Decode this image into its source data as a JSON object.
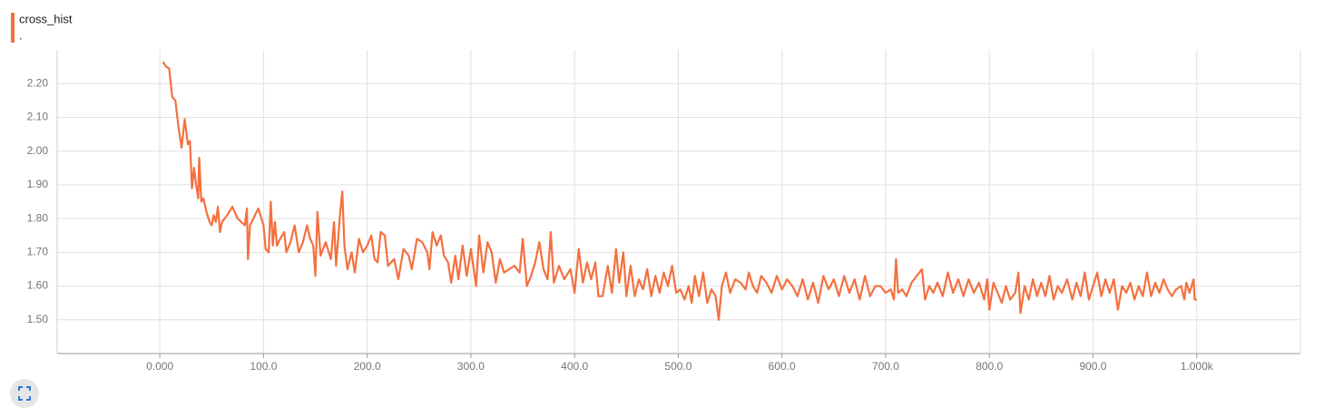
{
  "chart_data": {
    "type": "line",
    "subtitle": ".",
    "x": [
      3,
      6,
      9,
      12,
      15,
      18,
      21,
      24,
      27,
      29,
      31,
      33,
      35,
      37,
      38,
      40,
      42,
      45,
      48,
      50,
      52,
      54,
      56,
      58,
      60,
      65,
      70,
      75,
      82,
      84,
      85,
      87,
      95,
      100,
      102,
      105,
      107,
      109,
      111,
      113,
      116,
      120,
      122,
      126,
      130,
      134,
      138,
      142,
      145,
      148,
      150,
      152,
      155,
      160,
      165,
      168,
      170,
      174,
      176,
      178,
      181,
      185,
      188,
      192,
      196,
      200,
      204,
      207,
      210,
      213,
      217,
      220,
      226,
      230,
      235,
      240,
      243,
      248,
      253,
      258,
      260,
      263,
      267,
      271,
      274,
      278,
      281,
      285,
      288,
      292,
      296,
      300,
      305,
      308,
      312,
      316,
      320,
      324,
      328,
      332,
      337,
      342,
      347,
      350,
      354,
      358,
      362,
      366,
      370,
      374,
      377,
      380,
      385,
      390,
      396,
      400,
      404,
      408,
      412,
      416,
      420,
      423,
      427,
      432,
      436,
      440,
      443,
      447,
      450,
      454,
      458,
      462,
      466,
      470,
      474,
      478,
      482,
      486,
      490,
      494,
      498,
      502,
      506,
      510,
      513,
      516,
      520,
      524,
      528,
      532,
      536,
      539,
      542,
      546,
      550,
      555,
      560,
      565,
      568,
      572,
      576,
      580,
      585,
      590,
      595,
      600,
      605,
      610,
      615,
      620,
      625,
      630,
      635,
      640,
      645,
      650,
      655,
      660,
      665,
      670,
      675,
      680,
      685,
      690,
      695,
      700,
      705,
      708,
      710,
      712,
      716,
      720,
      725,
      730,
      735,
      738,
      742,
      746,
      750,
      755,
      760,
      765,
      770,
      775,
      780,
      785,
      790,
      795,
      798,
      800,
      804,
      808,
      812,
      816,
      820,
      825,
      828,
      830,
      834,
      838,
      842,
      846,
      850,
      854,
      858,
      862,
      866,
      870,
      875,
      880,
      884,
      888,
      892,
      896,
      900,
      904,
      908,
      912,
      916,
      920,
      924,
      928,
      932,
      936,
      940,
      944,
      948,
      952,
      956,
      960,
      964,
      968,
      972,
      976,
      980,
      985,
      988,
      990,
      993,
      997,
      998,
      1000
    ],
    "series": [
      {
        "name": "cross_hist",
        "color": "#f4703f",
        "values": [
          2.265,
          2.25,
          2.245,
          2.16,
          2.15,
          2.07,
          2.01,
          2.095,
          2.02,
          2.03,
          1.89,
          1.95,
          1.9,
          1.86,
          1.98,
          1.85,
          1.86,
          1.82,
          1.79,
          1.78,
          1.81,
          1.79,
          1.835,
          1.76,
          1.79,
          1.81,
          1.835,
          1.8,
          1.78,
          1.83,
          1.68,
          1.78,
          1.83,
          1.78,
          1.71,
          1.7,
          1.85,
          1.72,
          1.79,
          1.72,
          1.74,
          1.76,
          1.7,
          1.73,
          1.78,
          1.7,
          1.73,
          1.78,
          1.74,
          1.72,
          1.63,
          1.82,
          1.69,
          1.73,
          1.68,
          1.79,
          1.66,
          1.82,
          1.88,
          1.72,
          1.65,
          1.7,
          1.64,
          1.74,
          1.7,
          1.72,
          1.75,
          1.68,
          1.67,
          1.76,
          1.75,
          1.66,
          1.68,
          1.62,
          1.71,
          1.69,
          1.65,
          1.74,
          1.73,
          1.7,
          1.65,
          1.76,
          1.72,
          1.75,
          1.69,
          1.67,
          1.61,
          1.69,
          1.62,
          1.72,
          1.63,
          1.71,
          1.6,
          1.75,
          1.64,
          1.73,
          1.7,
          1.61,
          1.68,
          1.64,
          1.65,
          1.66,
          1.64,
          1.74,
          1.6,
          1.63,
          1.67,
          1.73,
          1.65,
          1.62,
          1.76,
          1.61,
          1.66,
          1.62,
          1.65,
          1.58,
          1.71,
          1.61,
          1.67,
          1.62,
          1.67,
          1.57,
          1.57,
          1.66,
          1.58,
          1.71,
          1.61,
          1.7,
          1.57,
          1.66,
          1.57,
          1.62,
          1.59,
          1.65,
          1.57,
          1.63,
          1.58,
          1.64,
          1.6,
          1.66,
          1.58,
          1.59,
          1.56,
          1.6,
          1.55,
          1.63,
          1.57,
          1.64,
          1.55,
          1.59,
          1.57,
          1.5,
          1.6,
          1.64,
          1.58,
          1.62,
          1.61,
          1.59,
          1.64,
          1.6,
          1.58,
          1.63,
          1.61,
          1.58,
          1.63,
          1.59,
          1.62,
          1.6,
          1.57,
          1.62,
          1.56,
          1.61,
          1.55,
          1.63,
          1.59,
          1.62,
          1.57,
          1.63,
          1.58,
          1.62,
          1.56,
          1.63,
          1.57,
          1.6,
          1.6,
          1.58,
          1.59,
          1.56,
          1.68,
          1.58,
          1.59,
          1.57,
          1.61,
          1.63,
          1.65,
          1.56,
          1.6,
          1.58,
          1.61,
          1.57,
          1.64,
          1.58,
          1.62,
          1.57,
          1.62,
          1.58,
          1.61,
          1.56,
          1.62,
          1.53,
          1.61,
          1.58,
          1.55,
          1.6,
          1.56,
          1.58,
          1.64,
          1.52,
          1.6,
          1.56,
          1.62,
          1.57,
          1.61,
          1.57,
          1.63,
          1.56,
          1.6,
          1.58,
          1.62,
          1.56,
          1.61,
          1.57,
          1.64,
          1.56,
          1.6,
          1.64,
          1.57,
          1.62,
          1.58,
          1.62,
          1.53,
          1.6,
          1.58,
          1.61,
          1.56,
          1.6,
          1.57,
          1.64,
          1.57,
          1.61,
          1.58,
          1.62,
          1.59,
          1.57,
          1.59,
          1.6,
          1.56,
          1.61,
          1.58,
          1.62,
          1.56,
          1.56
        ]
      }
    ],
    "xlim": [
      -99,
      1100
    ],
    "xticks": [
      {
        "value": 0,
        "label": "0.000"
      },
      {
        "value": 100,
        "label": "100.0"
      },
      {
        "value": 200,
        "label": "200.0"
      },
      {
        "value": 300,
        "label": "300.0"
      },
      {
        "value": 400,
        "label": "400.0"
      },
      {
        "value": 500,
        "label": "500.0"
      },
      {
        "value": 600,
        "label": "600.0"
      },
      {
        "value": 700,
        "label": "700.0"
      },
      {
        "value": 800,
        "label": "800.0"
      },
      {
        "value": 900,
        "label": "900.0"
      },
      {
        "value": 1000,
        "label": "1.000k"
      }
    ],
    "ylim": [
      1.4,
      2.3
    ],
    "yticks": [
      {
        "value": 1.5,
        "label": "1.50"
      },
      {
        "value": 1.6,
        "label": "1.60"
      },
      {
        "value": 1.7,
        "label": "1.70"
      },
      {
        "value": 1.8,
        "label": "1.80"
      },
      {
        "value": 1.9,
        "label": "1.90"
      },
      {
        "value": 2.0,
        "label": "2.00"
      },
      {
        "value": 2.1,
        "label": "2.10"
      },
      {
        "value": 2.2,
        "label": "2.20"
      }
    ],
    "grid": true
  }
}
